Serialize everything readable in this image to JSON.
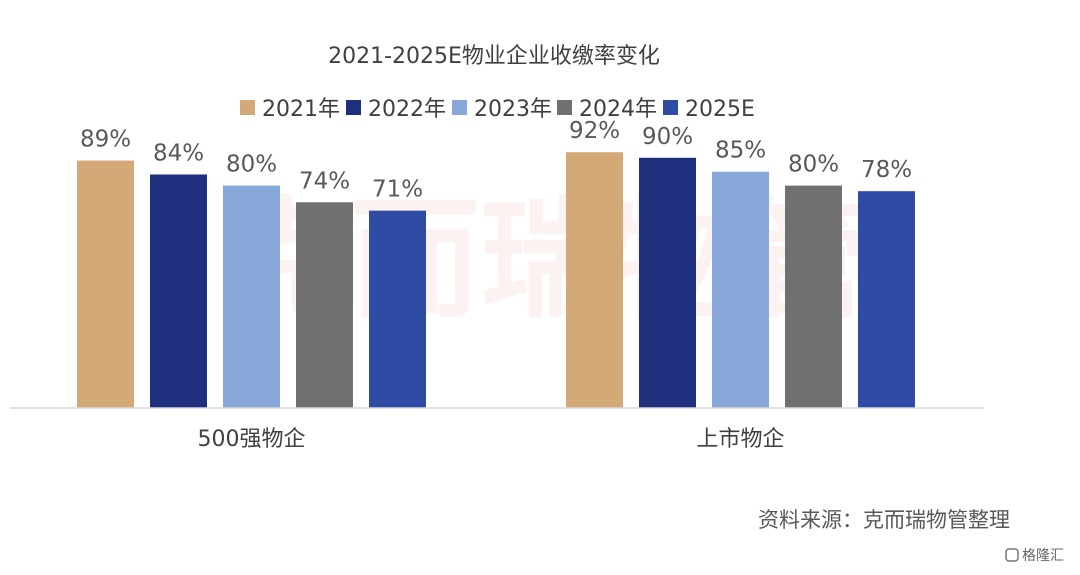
{
  "chart_data": {
    "type": "bar",
    "title": "2021-2025E物业企业收缴率变化",
    "categories": [
      "500强物企",
      "上市物企"
    ],
    "series": [
      {
        "name": "2021年",
        "color": "#D4A978",
        "values": [
          89,
          92
        ],
        "labels": [
          "89%",
          "92%"
        ]
      },
      {
        "name": "2022年",
        "color": "#1E2F7E",
        "values": [
          84,
          90
        ],
        "labels": [
          "84%",
          "90%"
        ]
      },
      {
        "name": "2023年",
        "color": "#89A8DA",
        "values": [
          80,
          85
        ],
        "labels": [
          "80%",
          "85%"
        ]
      },
      {
        "name": "2024年",
        "color": "#707070",
        "values": [
          74,
          80
        ],
        "labels": [
          "74%",
          "80%"
        ]
      },
      {
        "name": "2025E",
        "color": "#2F4BA6",
        "values": [
          71,
          78
        ],
        "labels": [
          "71%",
          "78%"
        ]
      }
    ],
    "ylim": [
      0,
      100
    ],
    "legend": "top"
  },
  "source_note": "资料来源：克而瑞物管整理",
  "watermark": "克而瑞物管",
  "badge": "格隆汇"
}
